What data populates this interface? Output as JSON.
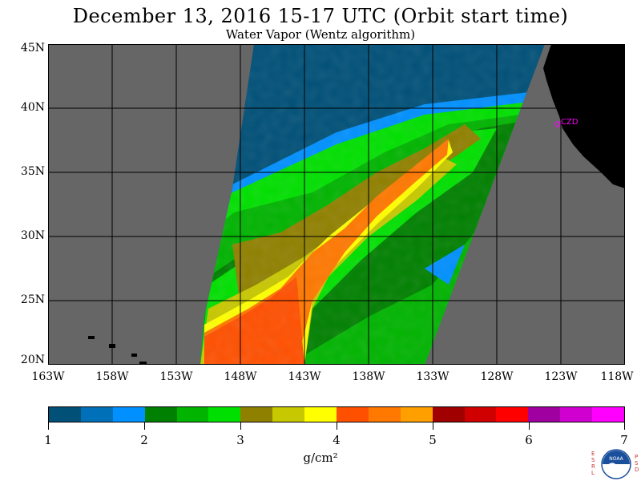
{
  "header": {
    "title": "December 13, 2016  15-17 UTC  (Orbit start time)",
    "subtitle": "Water Vapor (Wentz algorithm)"
  },
  "map": {
    "lat_labels": [
      "45N",
      "40N",
      "35N",
      "30N",
      "25N",
      "20N"
    ],
    "lon_labels": [
      "163W",
      "158W",
      "153W",
      "148W",
      "143W",
      "138W",
      "133W",
      "128W",
      "123W",
      "118W"
    ],
    "station_label": "CZD",
    "colors": {
      "no_data": "#666666",
      "land": "#000000",
      "station": "#ff00ff",
      "grid": "#000000"
    }
  },
  "colorbar": {
    "labels": [
      "1",
      "2",
      "3",
      "4",
      "5",
      "6",
      "7"
    ],
    "unit": "g/cm²",
    "colors": [
      "#005078",
      "#0070b8",
      "#0090ff",
      "#008000",
      "#00b400",
      "#00e000",
      "#908000",
      "#c8c800",
      "#ffff00",
      "#ff5000",
      "#ff7800",
      "#ffa000",
      "#a00000",
      "#d00000",
      "#ff0000",
      "#a000a0",
      "#d000d0",
      "#ff00ff"
    ]
  },
  "logo": {
    "text": "NOAA",
    "left_letters": [
      "E",
      "S",
      "R",
      "L"
    ],
    "right_letters": [
      "P",
      "S",
      "D"
    ]
  }
}
